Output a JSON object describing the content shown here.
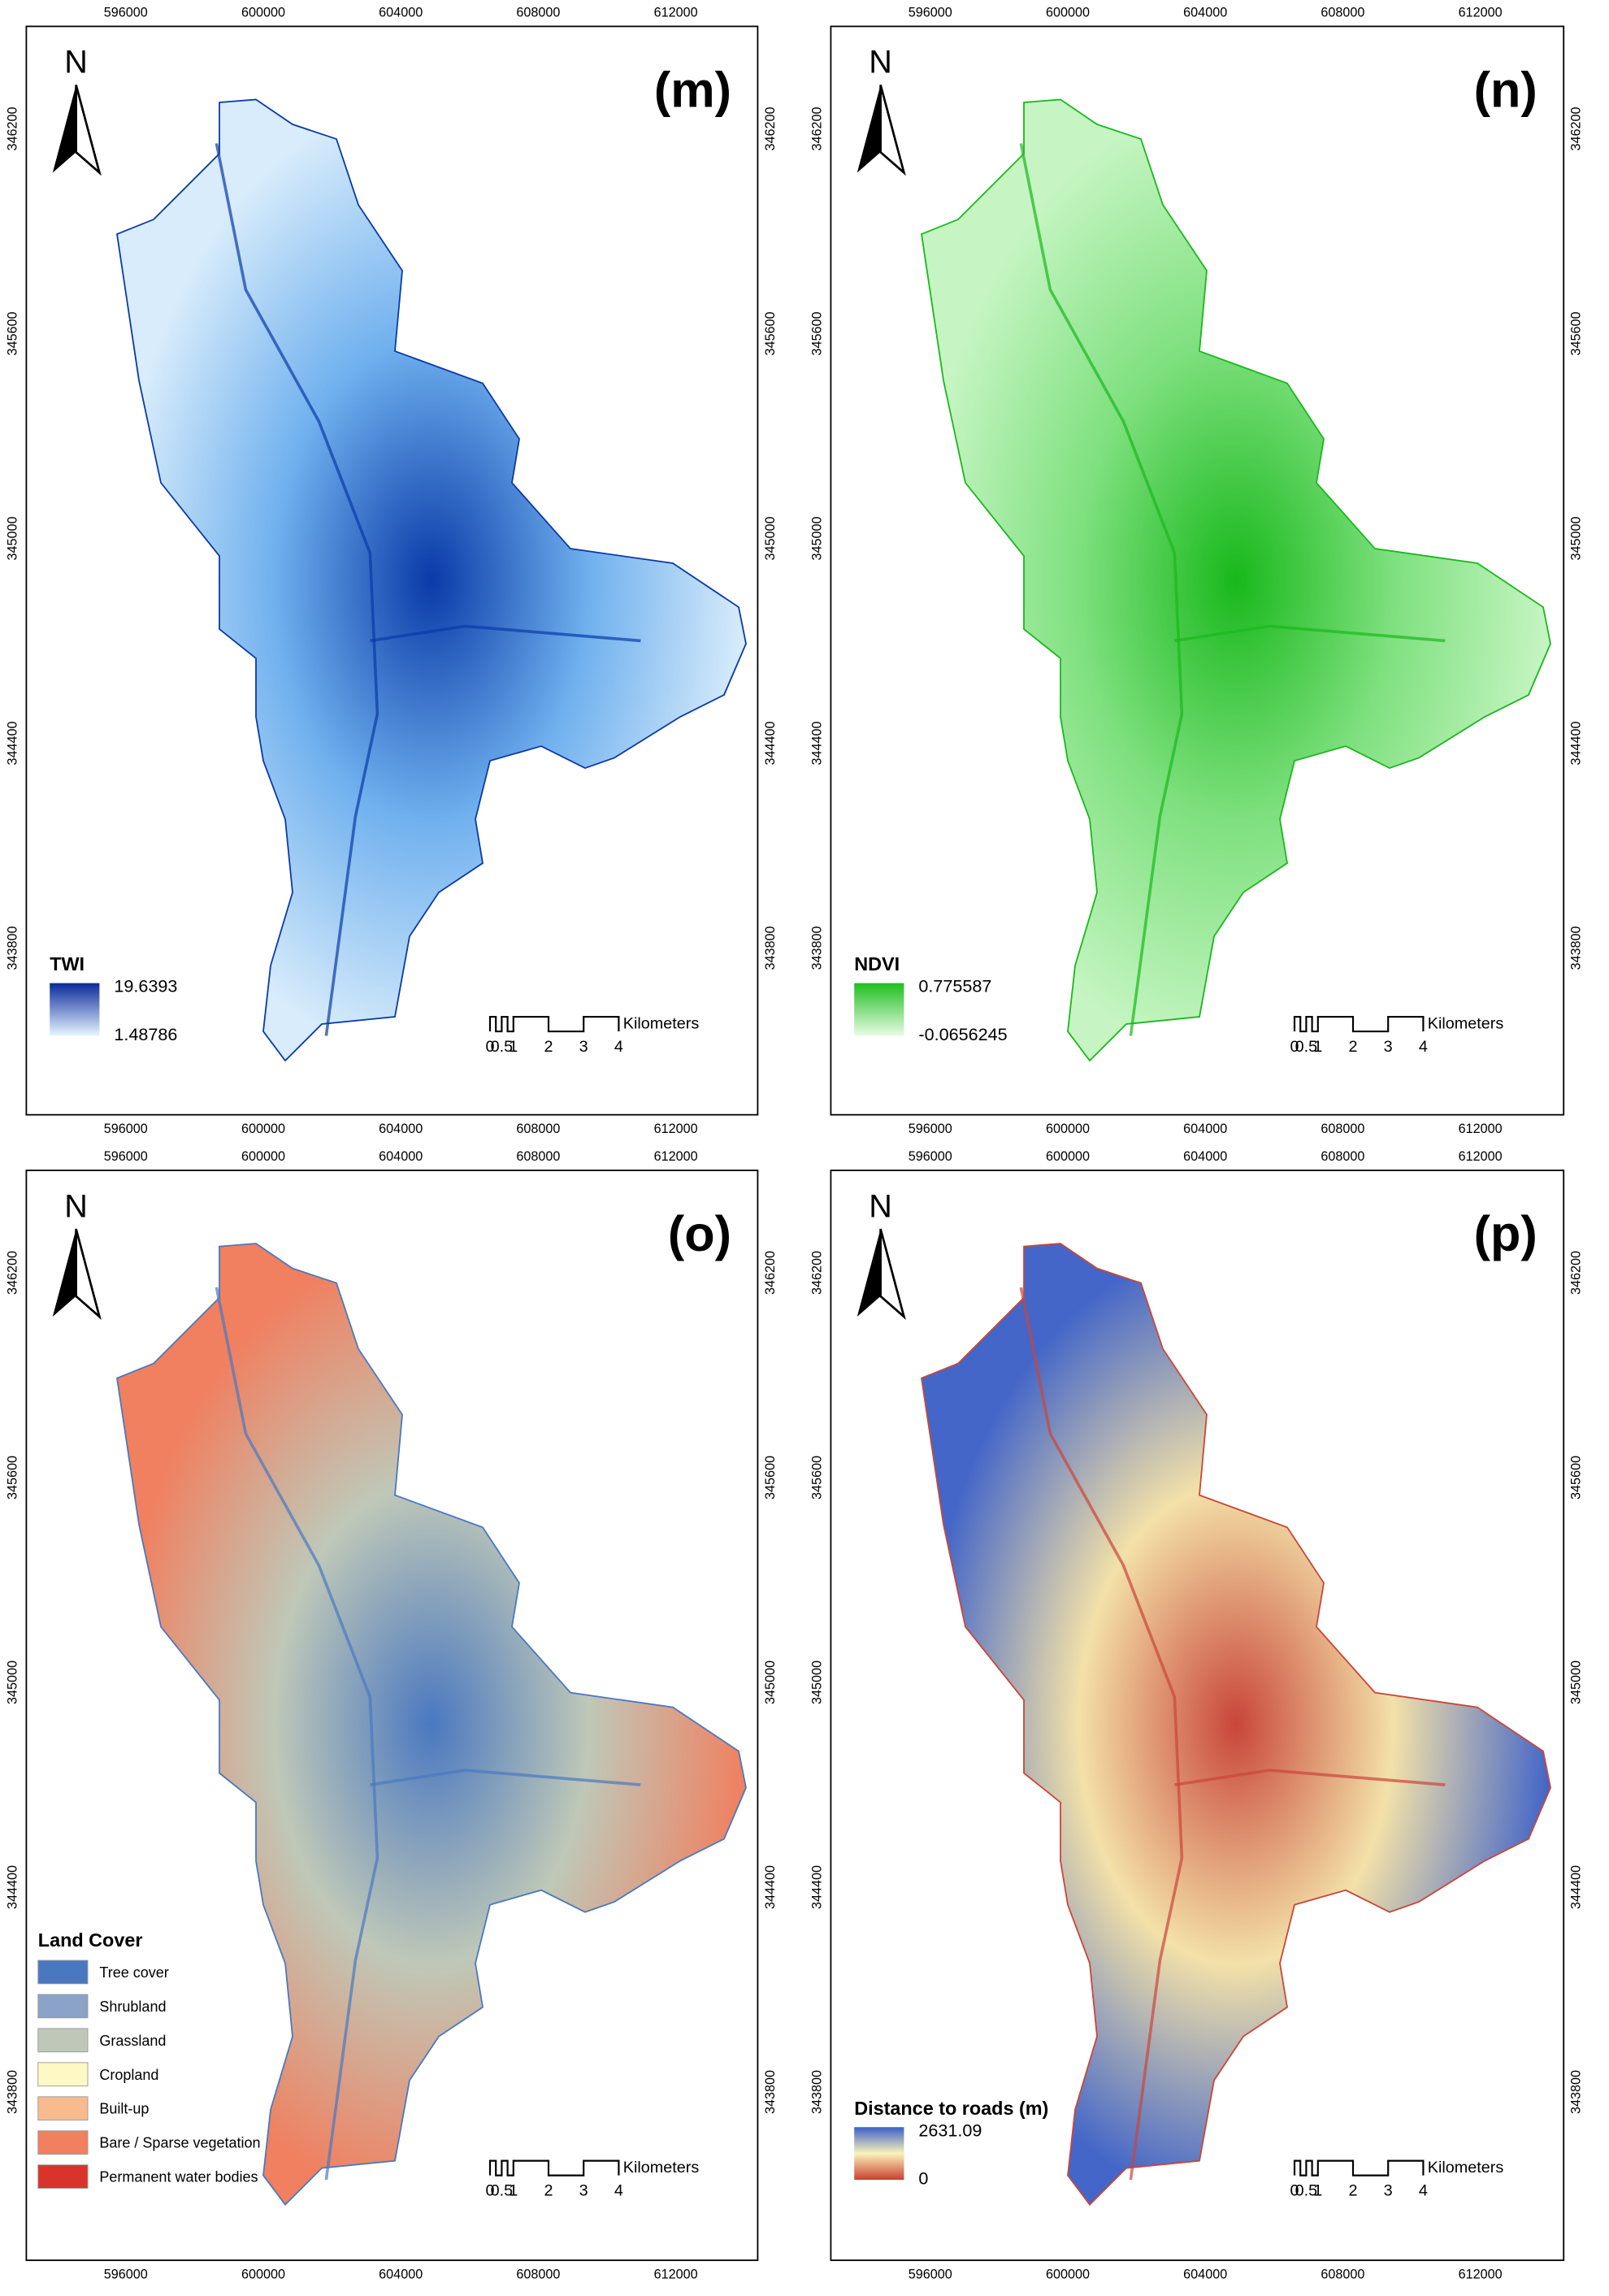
{
  "panels": [
    {
      "label": "(m)",
      "north": "N",
      "x_ticks": [
        "596000",
        "600000",
        "604000",
        "608000",
        "612000"
      ],
      "y_ticks": [
        "346200",
        "345600",
        "345000",
        "344400",
        "343800"
      ],
      "map_colors": [
        "#0a3aa8",
        "#6fb0ee",
        "#d8ecfb"
      ],
      "legend": {
        "title": "TWI",
        "max": "19.6393",
        "min": "1.48786",
        "colors": [
          "#0b2a9c",
          "#e6f6ff"
        ]
      },
      "scale_bar": {
        "ticks": [
          "0",
          "0.5",
          "1",
          "2",
          "3",
          "4"
        ],
        "unit": "Kilometers"
      }
    },
    {
      "label": "(n)",
      "north": "N",
      "x_ticks": [
        "596000",
        "600000",
        "604000",
        "608000",
        "612000"
      ],
      "y_ticks": [
        "346200",
        "345600",
        "345000",
        "344400",
        "343800"
      ],
      "map_colors": [
        "#19b81c",
        "#7ee07e",
        "#c6f5c3"
      ],
      "legend": {
        "title": "NDVI",
        "max": "0.775587",
        "min": "-0.0656245",
        "colors": [
          "#1fbf1f",
          "#e8fbe6"
        ]
      },
      "scale_bar": {
        "ticks": [
          "0",
          "0.5",
          "1",
          "2",
          "3",
          "4"
        ],
        "unit": "Kilometers"
      }
    },
    {
      "label": "(o)",
      "north": "N",
      "x_ticks": [
        "596000",
        "600000",
        "604000",
        "608000",
        "612000"
      ],
      "y_ticks": [
        "346200",
        "345600",
        "345000",
        "344400",
        "343800"
      ],
      "map_colors": [
        "#4a78c0",
        "#bfc8b8",
        "#f08060"
      ],
      "legend": {
        "title": "Land Cover",
        "items": [
          {
            "name": "Tree cover",
            "color": "#4a78c0"
          },
          {
            "name": "Shrubland",
            "color": "#8aa3c7"
          },
          {
            "name": "Grassland",
            "color": "#bfc8b8"
          },
          {
            "name": "Cropland",
            "color": "#fdf8c4"
          },
          {
            "name": "Built-up",
            "color": "#f9bb8e"
          },
          {
            "name": "Bare / Sparse vegetation",
            "color": "#f08060"
          },
          {
            "name": "Permanent water bodies",
            "color": "#d9342b"
          }
        ]
      },
      "scale_bar": {
        "ticks": [
          "0",
          "0.5",
          "1",
          "2",
          "3",
          "4"
        ],
        "unit": "Kilometers"
      }
    },
    {
      "label": "(p)",
      "north": "N",
      "x_ticks": [
        "596000",
        "600000",
        "604000",
        "608000",
        "612000"
      ],
      "y_ticks": [
        "346200",
        "345600",
        "345000",
        "344400",
        "343800"
      ],
      "map_colors": [
        "#c9463a",
        "#f3e1a8",
        "#4466c8"
      ],
      "legend": {
        "title": "Distance to roads (m)",
        "max": "2631.09",
        "min": "0",
        "colors": [
          "#3b5fc8",
          "#fbf3bb",
          "#c8412f"
        ]
      },
      "scale_bar": {
        "ticks": [
          "0",
          "0.5",
          "1",
          "2",
          "3",
          "4"
        ],
        "unit": "Kilometers"
      }
    }
  ]
}
